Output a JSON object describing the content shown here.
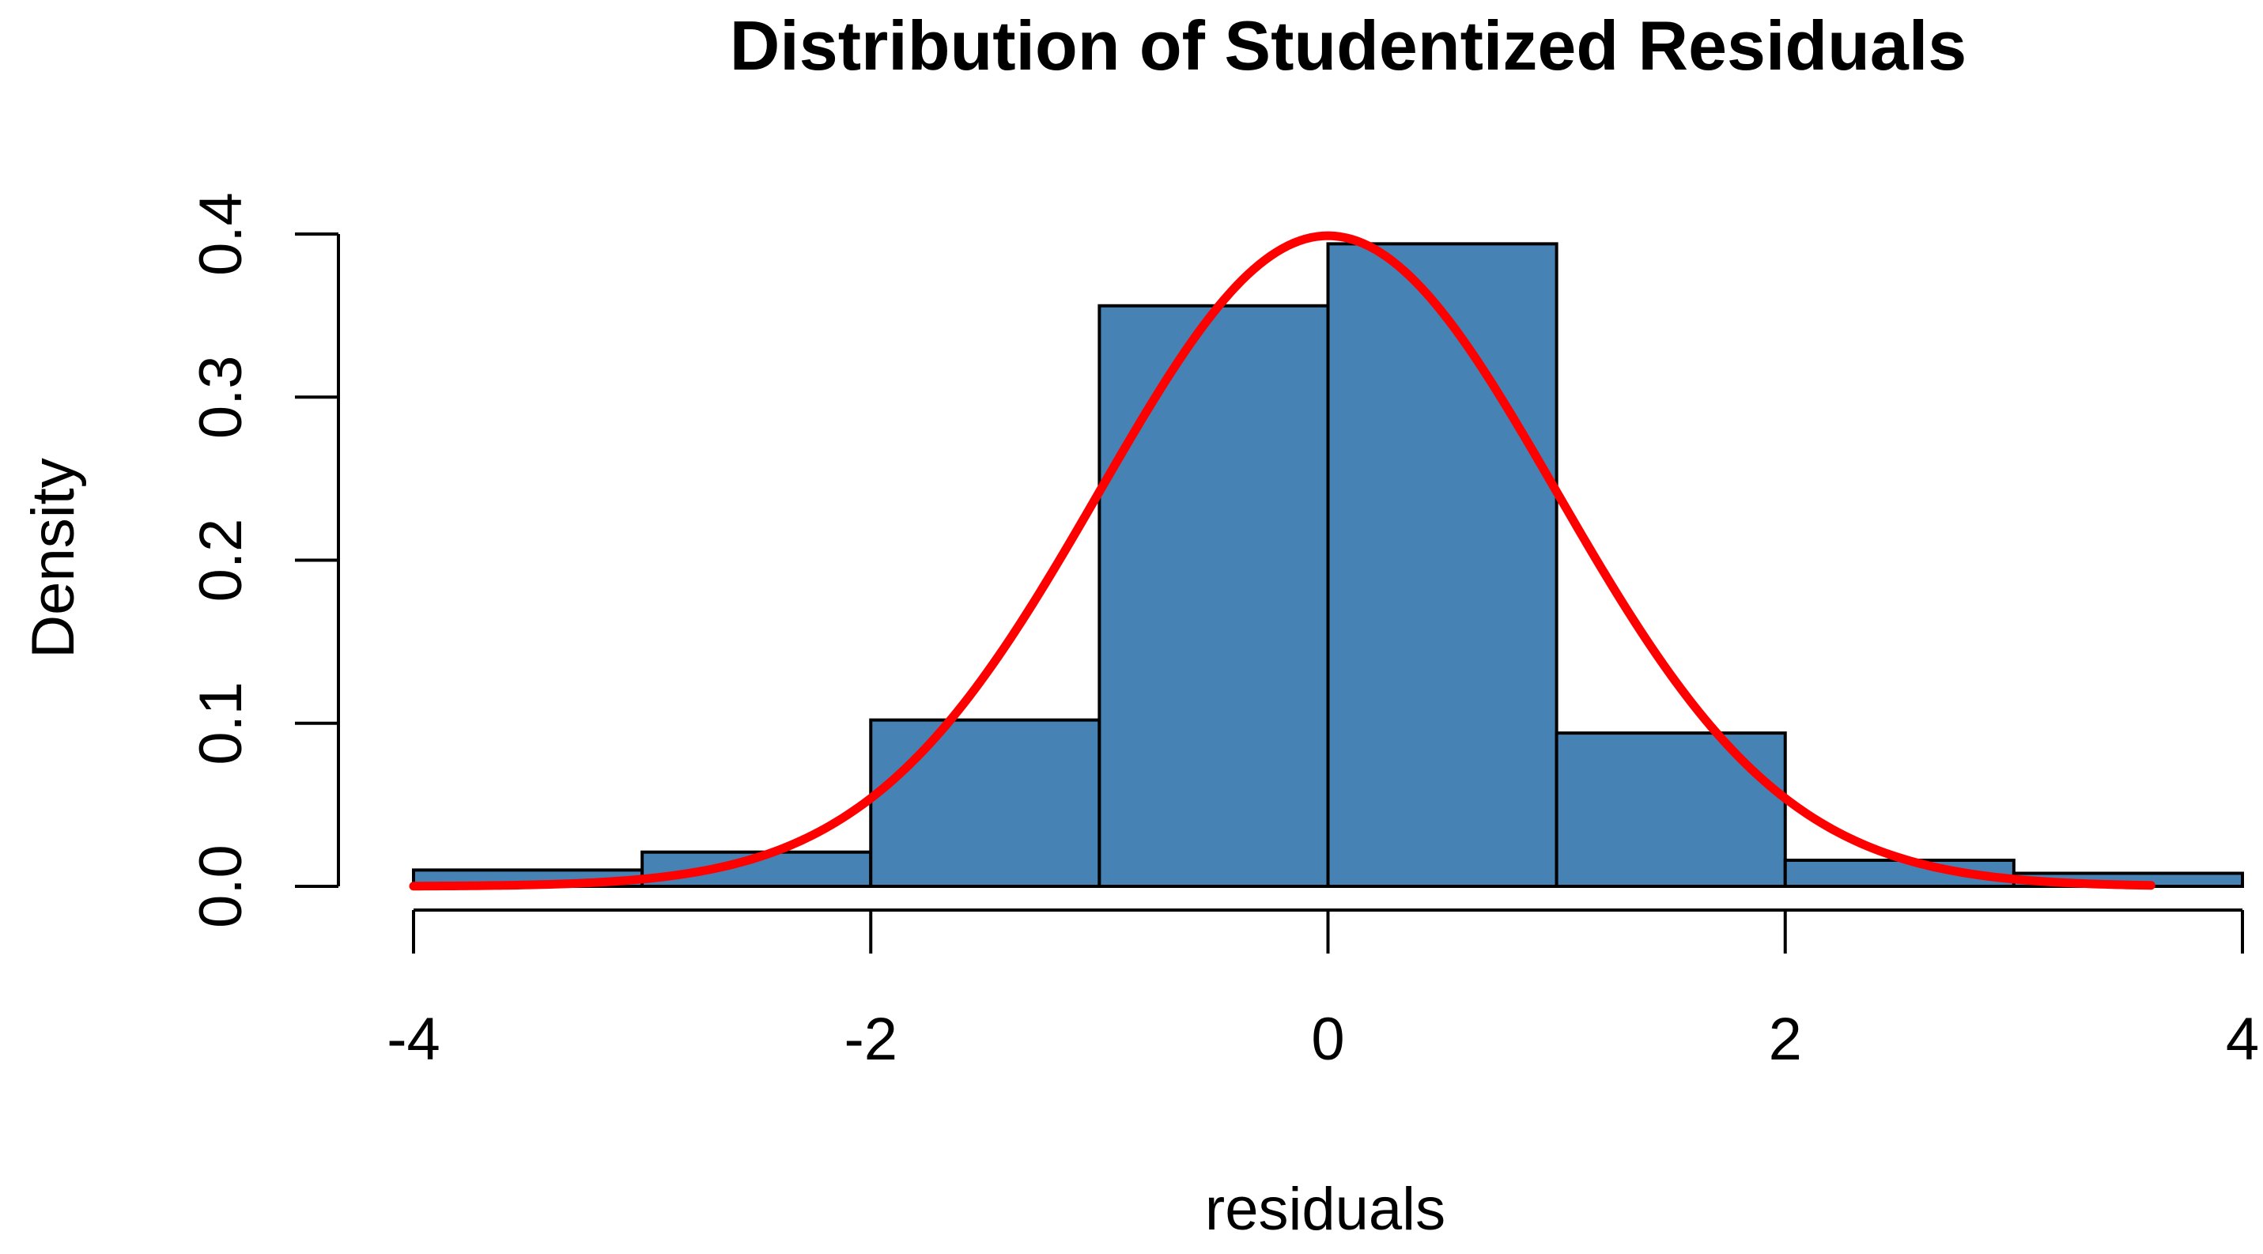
{
  "chart_data": {
    "type": "bar",
    "title": "Distribution of Studentized Residuals",
    "xlabel": "residuals",
    "ylabel": "Density",
    "xlim": [
      -4,
      4
    ],
    "ylim": [
      0,
      0.4
    ],
    "x_ticks": [
      -4,
      -2,
      0,
      2,
      4
    ],
    "x_tick_labels": [
      "-4",
      "-2",
      "0",
      "2",
      "4"
    ],
    "y_ticks": [
      0,
      0.1,
      0.2,
      0.3,
      0.4
    ],
    "y_tick_labels": [
      "0.0",
      "0.1",
      "0.2",
      "0.3",
      "0.4"
    ],
    "grid": false,
    "legend": "none",
    "bins": [
      {
        "x0": -4,
        "x1": -3,
        "density": 0.01
      },
      {
        "x0": -3,
        "x1": -2,
        "density": 0.021
      },
      {
        "x0": -2,
        "x1": -1,
        "density": 0.102
      },
      {
        "x0": -1,
        "x1": 0,
        "density": 0.356
      },
      {
        "x0": 0,
        "x1": 1,
        "density": 0.394
      },
      {
        "x0": 1,
        "x1": 2,
        "density": 0.094
      },
      {
        "x0": 2,
        "x1": 3,
        "density": 0.016
      },
      {
        "x0": 3,
        "x1": 4,
        "density": 0.008
      }
    ],
    "density_curve": {
      "type": "line",
      "distribution": "normal",
      "mean": 0,
      "sd": 1,
      "x_range": [
        -4,
        3.6
      ]
    },
    "colors": {
      "bar_fill": "#4682B4",
      "bar_border": "#000000",
      "curve": "#FF0000"
    }
  }
}
